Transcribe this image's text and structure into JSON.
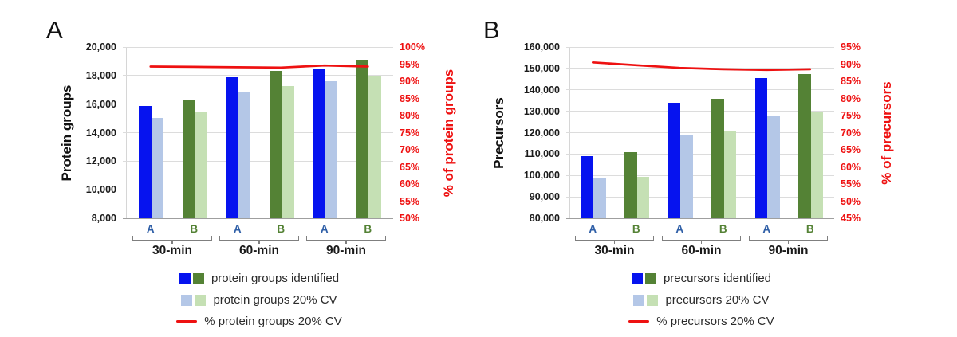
{
  "colors": {
    "dark_blue": "#0613ef",
    "light_blue": "#b4c7e7",
    "dark_green": "#548235",
    "light_green": "#c5e0b4",
    "line_red": "#ee1111",
    "rep_a": "#2f5fa7",
    "rep_b": "#548235",
    "grid": "#dcdcdc",
    "bracket": "#7f7f7f",
    "text": "#1a1a1a",
    "legend_text": "#2b2b2b"
  },
  "chart_data": [
    {
      "type": "bar+line",
      "letter": "A",
      "left_axis": {
        "title": "Protein groups",
        "min": 8000,
        "max": 20000,
        "step": 2000,
        "tick_labels": [
          "20,000",
          "18,000",
          "16,000",
          "14,000",
          "12,000",
          "10,000",
          "8,000"
        ]
      },
      "right_axis": {
        "title": "% of protein groups",
        "min": 50,
        "max": 100,
        "step": 5,
        "tick_labels": [
          "100%",
          "95%",
          "90%",
          "85%",
          "80%",
          "75%",
          "70%",
          "65%",
          "60%",
          "55%",
          "50%"
        ]
      },
      "groups": [
        {
          "label": "30-min",
          "reps": [
            {
              "label": "A",
              "identified": 15850,
              "cv20": 15050
            },
            {
              "label": "B",
              "identified": 16300,
              "cv20": 15400
            }
          ]
        },
        {
          "label": "60-min",
          "reps": [
            {
              "label": "A",
              "identified": 17900,
              "cv20": 16900
            },
            {
              "label": "B",
              "identified": 18350,
              "cv20": 17250
            }
          ]
        },
        {
          "label": "90-min",
          "reps": [
            {
              "label": "A",
              "identified": 18520,
              "cv20": 17600
            },
            {
              "label": "B",
              "identified": 19100,
              "cv20": 17980
            }
          ]
        }
      ],
      "line_percent": [
        94.3,
        94.2,
        94.1,
        94.0,
        94.6,
        94.3
      ],
      "legend": [
        {
          "swatches": [
            "dark_blue",
            "dark_green"
          ],
          "label": "protein groups identified"
        },
        {
          "swatches": [
            "light_blue",
            "light_green"
          ],
          "label": "protein groups 20% CV"
        },
        {
          "line": true,
          "label": "% protein groups 20% CV"
        }
      ]
    },
    {
      "type": "bar+line",
      "letter": "B",
      "left_axis": {
        "title": "Precursors",
        "min": 80000,
        "max": 160000,
        "step": 10000,
        "tick_labels": [
          "160,000",
          "150,000",
          "140,000",
          "130,000",
          "120,000",
          "110,000",
          "100,000",
          "90,000",
          "80,000"
        ]
      },
      "right_axis": {
        "title": "% of precursors",
        "min": 45,
        "max": 95,
        "step": 5,
        "tick_labels": [
          "95%",
          "90%",
          "85%",
          "80%",
          "75%",
          "70%",
          "65%",
          "60%",
          "55%",
          "50%",
          "45%"
        ]
      },
      "groups": [
        {
          "label": "30-min",
          "reps": [
            {
              "label": "A",
              "identified": 109000,
              "cv20": 99000
            },
            {
              "label": "B",
              "identified": 111000,
              "cv20": 99300
            }
          ]
        },
        {
          "label": "60-min",
          "reps": [
            {
              "label": "A",
              "identified": 134000,
              "cv20": 119000
            },
            {
              "label": "B",
              "identified": 136000,
              "cv20": 121000
            }
          ]
        },
        {
          "label": "90-min",
          "reps": [
            {
              "label": "A",
              "identified": 145500,
              "cv20": 128000
            },
            {
              "label": "B",
              "identified": 147500,
              "cv20": 129500
            }
          ]
        }
      ],
      "line_percent": [
        90.5,
        89.7,
        88.9,
        88.5,
        88.3,
        88.5
      ],
      "legend": [
        {
          "swatches": [
            "dark_blue",
            "dark_green"
          ],
          "label": "precursors identified"
        },
        {
          "swatches": [
            "light_blue",
            "light_green"
          ],
          "label": "precursors 20% CV"
        },
        {
          "line": true,
          "label": "% precursors 20% CV"
        }
      ]
    }
  ]
}
